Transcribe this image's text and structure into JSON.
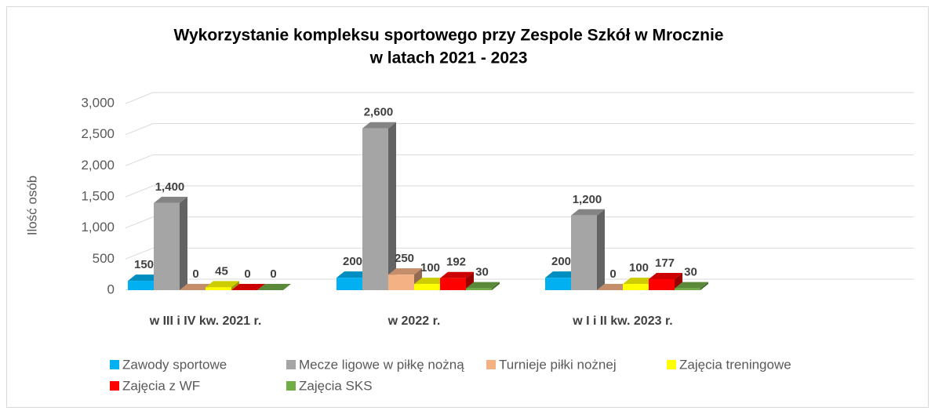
{
  "chart_data": {
    "type": "bar3d",
    "title": [
      "Wykorzystanie kompleksu sportowego przy Zespole Szkół w Mrocznie",
      "w latach 2021 - 2023"
    ],
    "y_label": "Ilość osób",
    "categories": [
      "w III i IV kw. 2021 r.",
      "w 2022 r.",
      "w I i II kw. 2023 r."
    ],
    "series": [
      {
        "name": "Zawody sportowe",
        "color": "#00b0f0",
        "values": [
          150,
          200,
          200
        ]
      },
      {
        "name": "Mecze ligowe w piłkę nożną",
        "color": "#a5a5a5",
        "values": [
          1400,
          2600,
          1200
        ],
        "value_labels": [
          "1,400",
          "2,600",
          "1,200"
        ]
      },
      {
        "name": "Turnieje piłki nożnej",
        "color": "#f4b183",
        "values": [
          0,
          250,
          0
        ]
      },
      {
        "name": "Zajęcia treningowe",
        "color": "#ffff00",
        "values": [
          45,
          100,
          100
        ]
      },
      {
        "name": "Zajęcia z WF",
        "color": "#ff0000",
        "values": [
          0,
          192,
          177
        ]
      },
      {
        "name": "Zajęcia SKS",
        "color": "#70ad47",
        "values": [
          0,
          30,
          30
        ]
      }
    ],
    "ylim": [
      0,
      3000
    ],
    "yticks": [
      0,
      500,
      {
        "value": 1000,
        "label": "1,000"
      },
      {
        "value": 1500,
        "label": "1,500"
      },
      {
        "value": 2000,
        "label": "2,000"
      },
      {
        "value": 2500,
        "label": "2,500"
      },
      {
        "value": 3000,
        "label": "3,000"
      }
    ],
    "grid": true
  }
}
